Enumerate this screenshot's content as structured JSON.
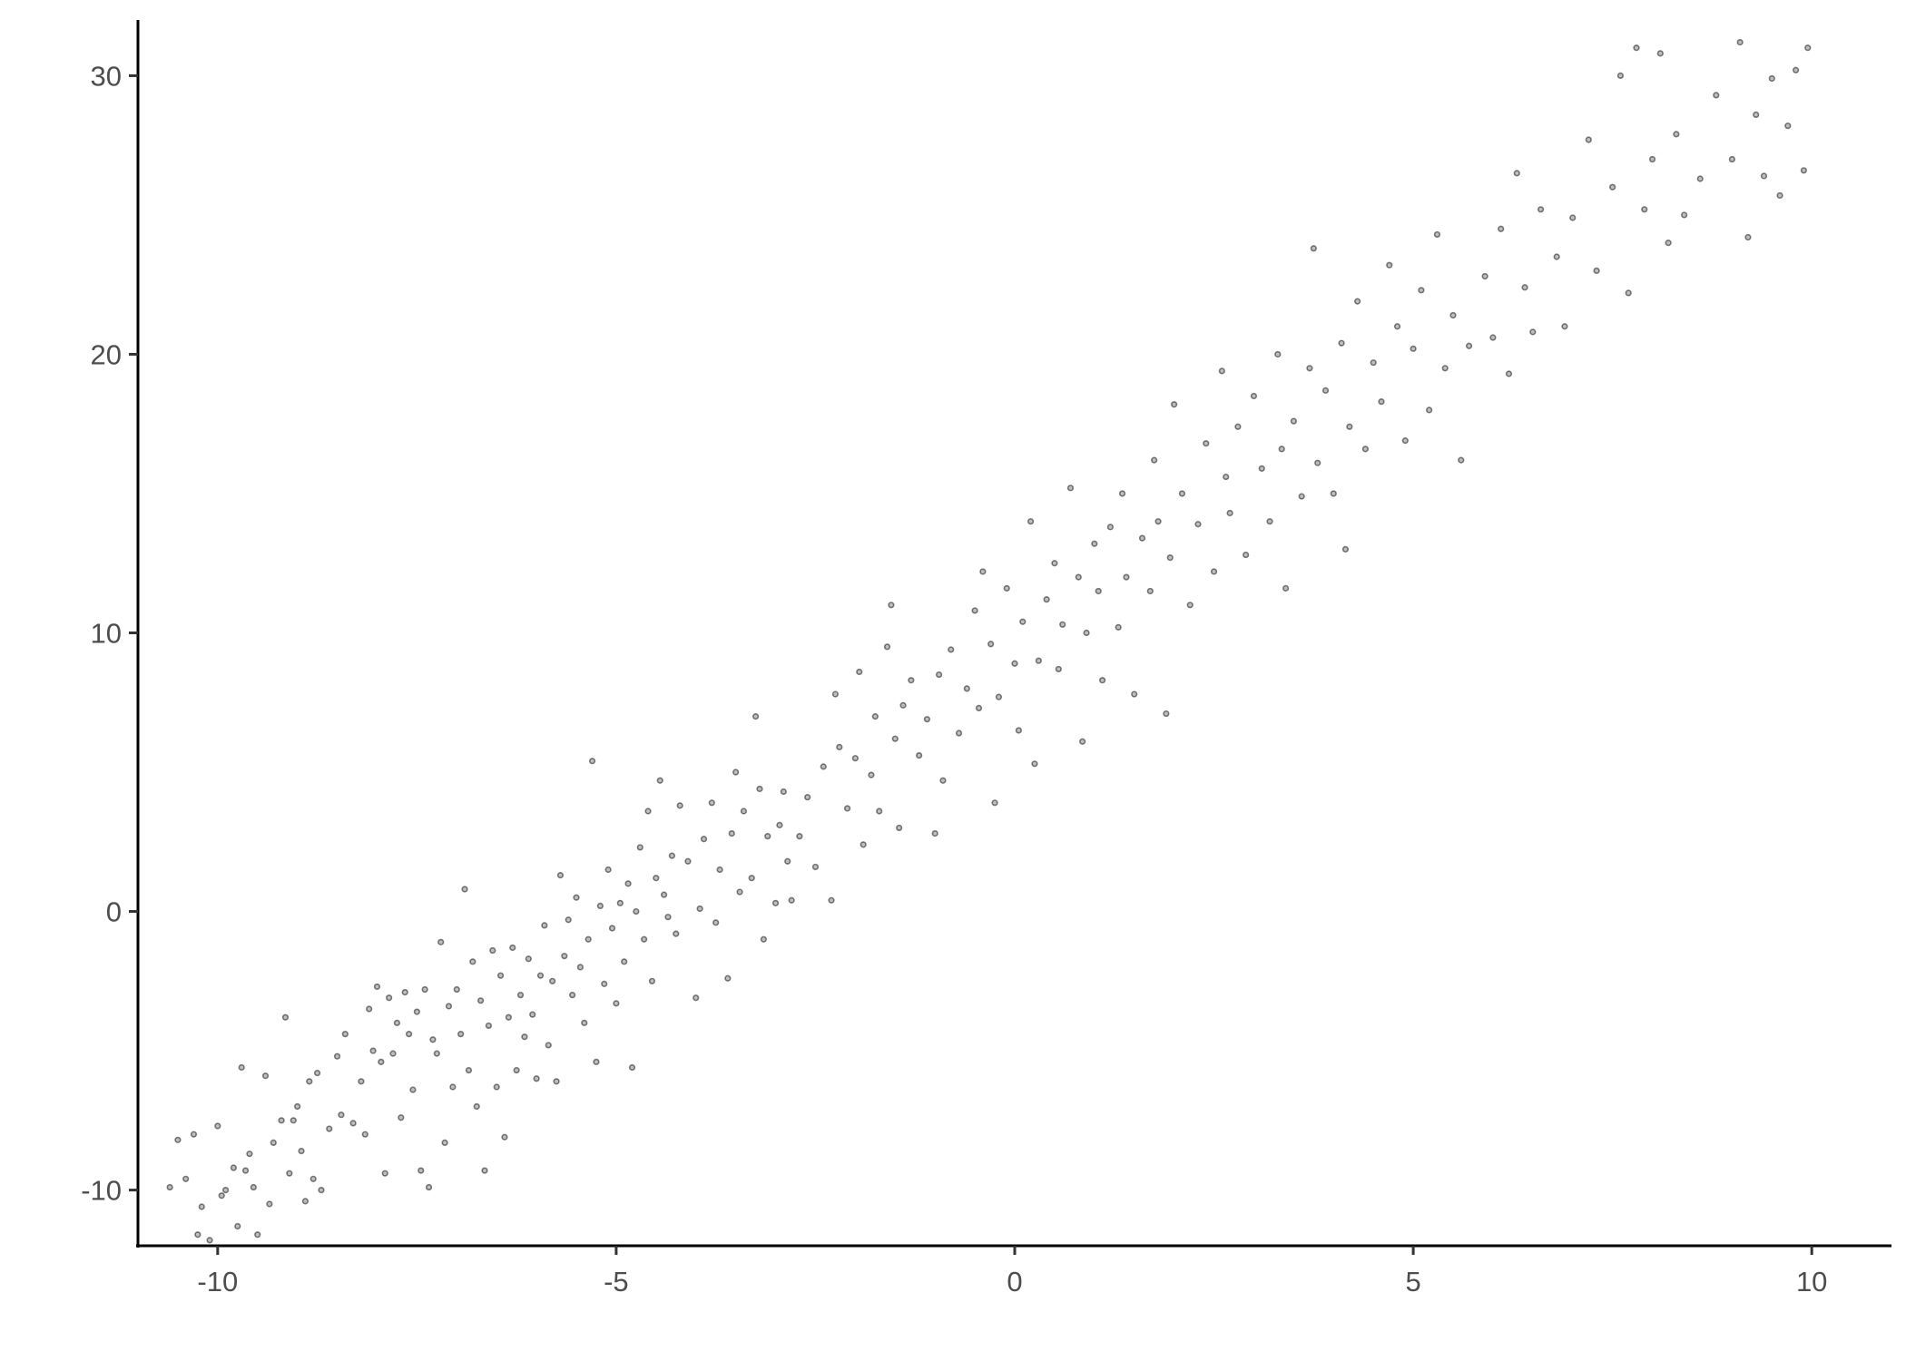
{
  "chart_data": {
    "type": "scatter",
    "title": "",
    "xlabel": "",
    "ylabel": "",
    "xlim": [
      -11,
      11
    ],
    "ylim": [
      -12,
      32
    ],
    "xticks": [
      -10,
      -5,
      0,
      5,
      10
    ],
    "yticks": [
      -10,
      0,
      10,
      20,
      30
    ],
    "xtick_labels": [
      "-10",
      "-5",
      "0",
      "5",
      "10"
    ],
    "ytick_labels": [
      "-10",
      "0",
      "10",
      "20",
      "30"
    ],
    "grid": false,
    "legend": "none",
    "point_color": "#000000",
    "point_alpha": 0.5,
    "points": [
      [
        -10.6,
        -9.9
      ],
      [
        -10.5,
        -8.2
      ],
      [
        -10.4,
        -9.6
      ],
      [
        -10.3,
        -8.0
      ],
      [
        -10.2,
        -10.6
      ],
      [
        -10.25,
        -11.6
      ],
      [
        -10.1,
        -11.8
      ],
      [
        -10.0,
        -7.7
      ],
      [
        -9.95,
        -10.2
      ],
      [
        -9.9,
        -10.0
      ],
      [
        -9.8,
        -9.2
      ],
      [
        -9.75,
        -11.3
      ],
      [
        -9.7,
        -5.6
      ],
      [
        -9.65,
        -9.3
      ],
      [
        -9.6,
        -8.7
      ],
      [
        -9.55,
        -9.9
      ],
      [
        -9.5,
        -11.6
      ],
      [
        -9.4,
        -5.9
      ],
      [
        -9.35,
        -10.5
      ],
      [
        -9.3,
        -8.3
      ],
      [
        -9.2,
        -7.5
      ],
      [
        -9.15,
        -3.8
      ],
      [
        -9.1,
        -9.4
      ],
      [
        -9.05,
        -7.5
      ],
      [
        -9.0,
        -7.0
      ],
      [
        -8.95,
        -8.6
      ],
      [
        -8.9,
        -10.4
      ],
      [
        -8.85,
        -6.1
      ],
      [
        -8.8,
        -9.6
      ],
      [
        -8.75,
        -5.8
      ],
      [
        -8.7,
        -10.0
      ],
      [
        -8.6,
        -7.8
      ],
      [
        -8.5,
        -5.2
      ],
      [
        -8.45,
        -7.3
      ],
      [
        -8.4,
        -4.4
      ],
      [
        -8.3,
        -7.6
      ],
      [
        -8.2,
        -6.1
      ],
      [
        -8.15,
        -8.0
      ],
      [
        -8.1,
        -3.5
      ],
      [
        -8.05,
        -5.0
      ],
      [
        -8.0,
        -2.7
      ],
      [
        -7.95,
        -5.4
      ],
      [
        -7.9,
        -9.4
      ],
      [
        -7.85,
        -3.1
      ],
      [
        -7.8,
        -5.1
      ],
      [
        -7.75,
        -4.0
      ],
      [
        -7.7,
        -7.4
      ],
      [
        -7.65,
        -2.9
      ],
      [
        -7.6,
        -4.4
      ],
      [
        -7.55,
        -6.4
      ],
      [
        -7.5,
        -3.6
      ],
      [
        -7.45,
        -9.3
      ],
      [
        -7.4,
        -2.8
      ],
      [
        -7.35,
        -9.9
      ],
      [
        -7.3,
        -4.6
      ],
      [
        -7.25,
        -5.1
      ],
      [
        -7.2,
        -1.1
      ],
      [
        -7.15,
        -8.3
      ],
      [
        -7.1,
        -3.4
      ],
      [
        -7.05,
        -6.3
      ],
      [
        -7.0,
        -2.8
      ],
      [
        -6.95,
        -4.4
      ],
      [
        -6.9,
        0.8
      ],
      [
        -6.85,
        -5.7
      ],
      [
        -6.8,
        -1.8
      ],
      [
        -6.75,
        -7.0
      ],
      [
        -6.7,
        -3.2
      ],
      [
        -6.65,
        -9.3
      ],
      [
        -6.6,
        -4.1
      ],
      [
        -6.55,
        -1.4
      ],
      [
        -6.5,
        -6.3
      ],
      [
        -6.45,
        -2.3
      ],
      [
        -6.4,
        -8.1
      ],
      [
        -6.35,
        -3.8
      ],
      [
        -6.3,
        -1.3
      ],
      [
        -6.25,
        -5.7
      ],
      [
        -6.2,
        -3.0
      ],
      [
        -6.15,
        -4.5
      ],
      [
        -6.1,
        -1.7
      ],
      [
        -6.05,
        -3.7
      ],
      [
        -6.0,
        -6.0
      ],
      [
        -5.95,
        -2.3
      ],
      [
        -5.9,
        -0.5
      ],
      [
        -5.85,
        -4.8
      ],
      [
        -5.8,
        -2.5
      ],
      [
        -5.75,
        -6.1
      ],
      [
        -5.7,
        1.3
      ],
      [
        -5.65,
        -1.6
      ],
      [
        -5.6,
        -0.3
      ],
      [
        -5.55,
        -3.0
      ],
      [
        -5.5,
        0.5
      ],
      [
        -5.45,
        -2.0
      ],
      [
        -5.4,
        -4.0
      ],
      [
        -5.35,
        -1.0
      ],
      [
        -5.3,
        5.4
      ],
      [
        -5.25,
        -5.4
      ],
      [
        -5.2,
        0.2
      ],
      [
        -5.15,
        -2.6
      ],
      [
        -5.1,
        1.5
      ],
      [
        -5.05,
        -0.6
      ],
      [
        -5.0,
        -3.3
      ],
      [
        -4.95,
        0.3
      ],
      [
        -4.9,
        -1.8
      ],
      [
        -4.85,
        1.0
      ],
      [
        -4.8,
        -5.6
      ],
      [
        -4.75,
        0.0
      ],
      [
        -4.7,
        2.3
      ],
      [
        -4.65,
        -1.0
      ],
      [
        -4.6,
        3.6
      ],
      [
        -4.55,
        -2.5
      ],
      [
        -4.5,
        1.2
      ],
      [
        -4.45,
        4.7
      ],
      [
        -4.4,
        0.6
      ],
      [
        -4.35,
        -0.2
      ],
      [
        -4.3,
        2.0
      ],
      [
        -4.25,
        -0.8
      ],
      [
        -4.2,
        3.8
      ],
      [
        -4.1,
        1.8
      ],
      [
        -4.0,
        -3.1
      ],
      [
        -3.95,
        0.1
      ],
      [
        -3.9,
        2.6
      ],
      [
        -3.8,
        3.9
      ],
      [
        -3.75,
        -0.4
      ],
      [
        -3.7,
        1.5
      ],
      [
        -3.6,
        -2.4
      ],
      [
        -3.55,
        2.8
      ],
      [
        -3.5,
        5.0
      ],
      [
        -3.45,
        0.7
      ],
      [
        -3.4,
        3.6
      ],
      [
        -3.3,
        1.2
      ],
      [
        -3.25,
        7.0
      ],
      [
        -3.2,
        4.4
      ],
      [
        -3.15,
        -1.0
      ],
      [
        -3.1,
        2.7
      ],
      [
        -3.0,
        0.3
      ],
      [
        -2.95,
        3.1
      ],
      [
        -2.9,
        4.3
      ],
      [
        -2.85,
        1.8
      ],
      [
        -2.8,
        0.4
      ],
      [
        -2.7,
        2.7
      ],
      [
        -2.6,
        4.1
      ],
      [
        -2.5,
        1.6
      ],
      [
        -2.4,
        5.2
      ],
      [
        -2.3,
        0.4
      ],
      [
        -2.25,
        7.8
      ],
      [
        -2.2,
        5.9
      ],
      [
        -2.1,
        3.7
      ],
      [
        -2.0,
        5.5
      ],
      [
        -1.95,
        8.6
      ],
      [
        -1.9,
        2.4
      ],
      [
        -1.8,
        4.9
      ],
      [
        -1.75,
        7.0
      ],
      [
        -1.7,
        3.6
      ],
      [
        -1.6,
        9.5
      ],
      [
        -1.55,
        11.0
      ],
      [
        -1.5,
        6.2
      ],
      [
        -1.45,
        3.0
      ],
      [
        -1.4,
        7.4
      ],
      [
        -1.3,
        8.3
      ],
      [
        -1.2,
        5.6
      ],
      [
        -1.1,
        6.9
      ],
      [
        -1.0,
        2.8
      ],
      [
        -0.95,
        8.5
      ],
      [
        -0.9,
        4.7
      ],
      [
        -0.8,
        9.4
      ],
      [
        -0.7,
        6.4
      ],
      [
        -0.6,
        8.0
      ],
      [
        -0.5,
        10.8
      ],
      [
        -0.45,
        7.3
      ],
      [
        -0.4,
        12.2
      ],
      [
        -0.3,
        9.6
      ],
      [
        -0.25,
        3.9
      ],
      [
        -0.2,
        7.7
      ],
      [
        -0.1,
        11.6
      ],
      [
        0.0,
        8.9
      ],
      [
        0.05,
        6.5
      ],
      [
        0.1,
        10.4
      ],
      [
        0.2,
        14.0
      ],
      [
        0.25,
        5.3
      ],
      [
        0.3,
        9.0
      ],
      [
        0.4,
        11.2
      ],
      [
        0.5,
        12.5
      ],
      [
        0.55,
        8.7
      ],
      [
        0.6,
        10.3
      ],
      [
        0.7,
        15.2
      ],
      [
        0.8,
        12.0
      ],
      [
        0.85,
        6.1
      ],
      [
        0.9,
        10.0
      ],
      [
        1.0,
        13.2
      ],
      [
        1.05,
        11.5
      ],
      [
        1.1,
        8.3
      ],
      [
        1.2,
        13.8
      ],
      [
        1.3,
        10.2
      ],
      [
        1.35,
        15.0
      ],
      [
        1.4,
        12.0
      ],
      [
        1.5,
        7.8
      ],
      [
        1.6,
        13.4
      ],
      [
        1.7,
        11.5
      ],
      [
        1.75,
        16.2
      ],
      [
        1.8,
        14.0
      ],
      [
        1.9,
        7.1
      ],
      [
        1.95,
        12.7
      ],
      [
        2.0,
        18.2
      ],
      [
        2.1,
        15.0
      ],
      [
        2.2,
        11.0
      ],
      [
        2.3,
        13.9
      ],
      [
        2.4,
        16.8
      ],
      [
        2.5,
        12.2
      ],
      [
        2.6,
        19.4
      ],
      [
        2.65,
        15.6
      ],
      [
        2.7,
        14.3
      ],
      [
        2.8,
        17.4
      ],
      [
        2.9,
        12.8
      ],
      [
        3.0,
        18.5
      ],
      [
        3.1,
        15.9
      ],
      [
        3.2,
        14.0
      ],
      [
        3.3,
        20.0
      ],
      [
        3.35,
        16.6
      ],
      [
        3.4,
        11.6
      ],
      [
        3.5,
        17.6
      ],
      [
        3.6,
        14.9
      ],
      [
        3.7,
        19.5
      ],
      [
        3.75,
        23.8
      ],
      [
        3.8,
        16.1
      ],
      [
        3.9,
        18.7
      ],
      [
        4.0,
        15.0
      ],
      [
        4.1,
        20.4
      ],
      [
        4.15,
        13.0
      ],
      [
        4.2,
        17.4
      ],
      [
        4.3,
        21.9
      ],
      [
        4.4,
        16.6
      ],
      [
        4.5,
        19.7
      ],
      [
        4.6,
        18.3
      ],
      [
        4.7,
        23.2
      ],
      [
        4.8,
        21.0
      ],
      [
        4.9,
        16.9
      ],
      [
        5.0,
        20.2
      ],
      [
        5.1,
        22.3
      ],
      [
        5.2,
        18.0
      ],
      [
        5.3,
        24.3
      ],
      [
        5.4,
        19.5
      ],
      [
        5.5,
        21.4
      ],
      [
        5.6,
        16.2
      ],
      [
        5.7,
        20.3
      ],
      [
        5.9,
        22.8
      ],
      [
        6.0,
        20.6
      ],
      [
        6.1,
        24.5
      ],
      [
        6.2,
        19.3
      ],
      [
        6.3,
        26.5
      ],
      [
        6.4,
        22.4
      ],
      [
        6.5,
        20.8
      ],
      [
        6.6,
        25.2
      ],
      [
        6.8,
        23.5
      ],
      [
        6.9,
        21.0
      ],
      [
        7.0,
        24.9
      ],
      [
        7.2,
        27.7
      ],
      [
        7.3,
        23.0
      ],
      [
        7.5,
        26.0
      ],
      [
        7.6,
        30.0
      ],
      [
        7.7,
        22.2
      ],
      [
        7.8,
        31.0
      ],
      [
        7.9,
        25.2
      ],
      [
        8.0,
        27.0
      ],
      [
        8.1,
        30.8
      ],
      [
        8.2,
        24.0
      ],
      [
        8.3,
        27.9
      ],
      [
        8.4,
        25.0
      ],
      [
        8.6,
        26.3
      ],
      [
        8.8,
        29.3
      ],
      [
        9.0,
        27.0
      ],
      [
        9.1,
        31.2
      ],
      [
        9.2,
        24.2
      ],
      [
        9.3,
        28.6
      ],
      [
        9.4,
        26.4
      ],
      [
        9.5,
        29.9
      ],
      [
        9.6,
        25.7
      ],
      [
        9.7,
        28.2
      ],
      [
        9.8,
        30.2
      ],
      [
        9.9,
        26.6
      ],
      [
        9.95,
        31.0
      ]
    ]
  }
}
